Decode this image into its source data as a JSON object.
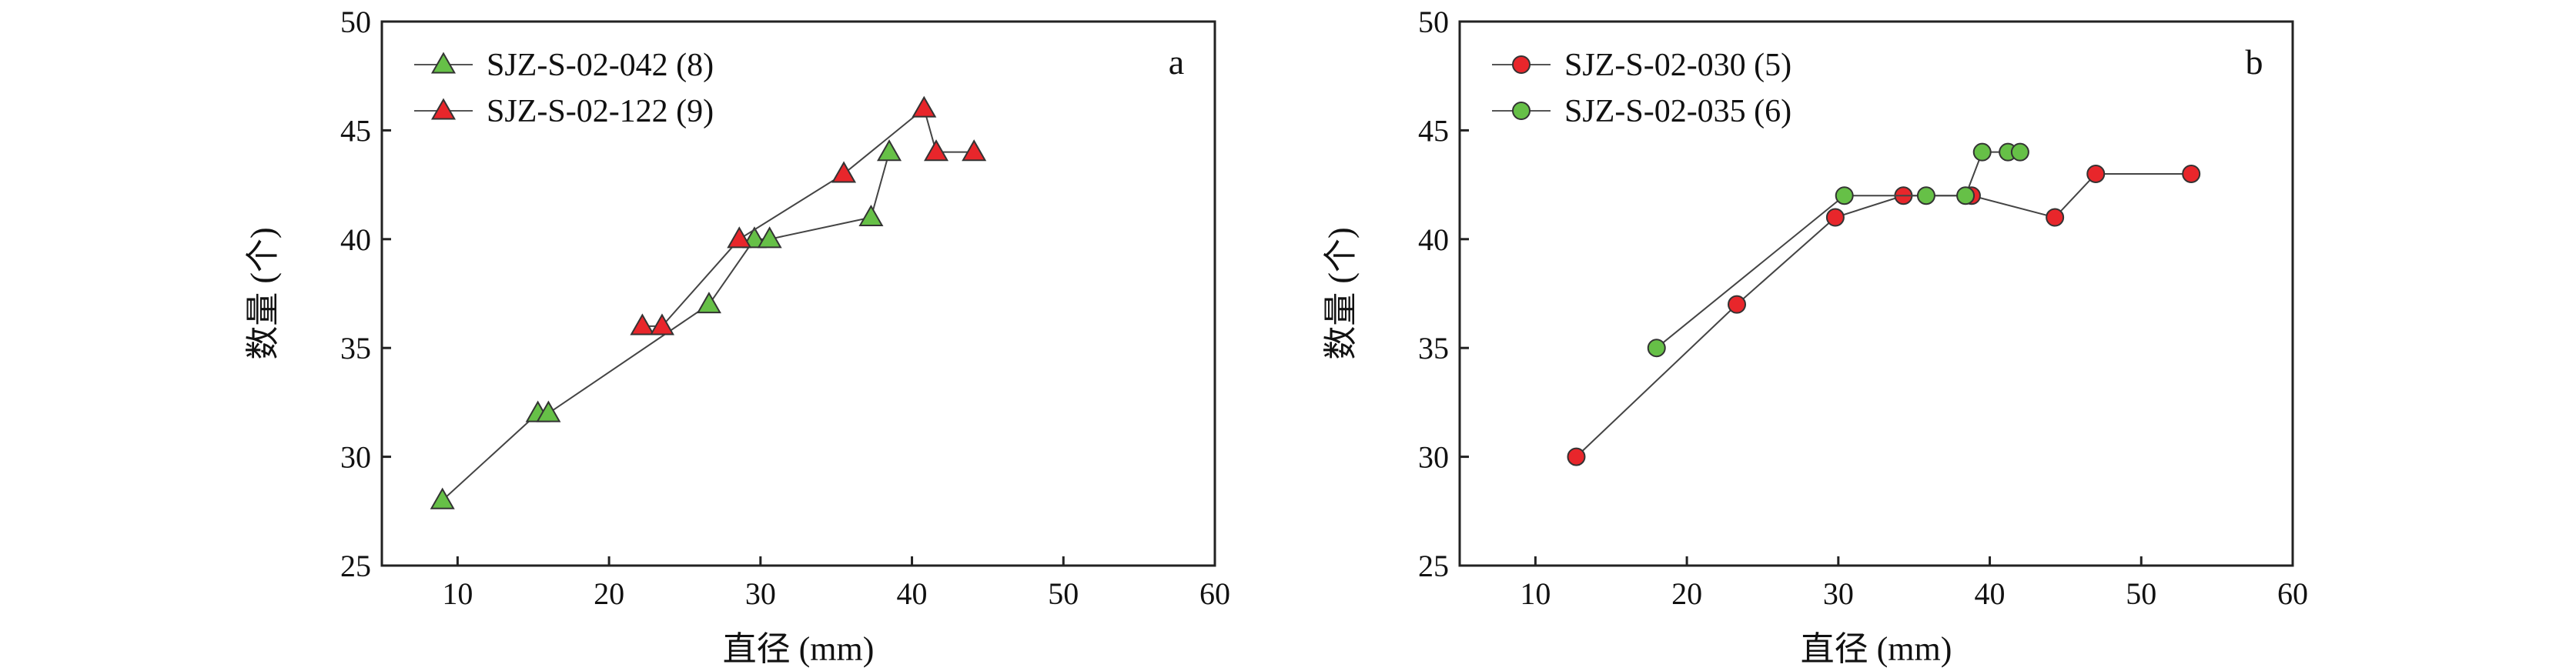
{
  "chart_data": [
    {
      "panel": "a",
      "type": "line",
      "xlabel": "直径 (mm)",
      "ylabel": "数量 (个)",
      "xlim": [
        5,
        60
      ],
      "ylim": [
        25,
        50
      ],
      "xticks": [
        10,
        20,
        30,
        40,
        50,
        60
      ],
      "yticks": [
        25,
        30,
        35,
        40,
        45,
        50
      ],
      "legend_position": "top-left",
      "series": [
        {
          "name": "SJZ-S-02-042 (8)",
          "marker": "triangle",
          "color": "#66c047",
          "points": [
            [
              9,
              28
            ],
            [
              15.3,
              32
            ],
            [
              16,
              32
            ],
            [
              26.6,
              37
            ],
            [
              29.6,
              40
            ],
            [
              30.6,
              40
            ],
            [
              37.3,
              41
            ],
            [
              38.5,
              44
            ]
          ]
        },
        {
          "name": "SJZ-S-02-122 (9)",
          "marker": "triangle",
          "color": "#e8262b",
          "points": [
            [
              22.2,
              36
            ],
            [
              23.5,
              36
            ],
            [
              28.6,
              40
            ],
            [
              35.5,
              43
            ],
            [
              40.8,
              46
            ],
            [
              41.6,
              44
            ],
            [
              44.1,
              44
            ]
          ]
        }
      ]
    },
    {
      "panel": "b",
      "type": "line",
      "xlabel": "直径 (mm)",
      "ylabel": "数量 (个)",
      "xlim": [
        5,
        60
      ],
      "ylim": [
        25,
        50
      ],
      "xticks": [
        10,
        20,
        30,
        40,
        50,
        60
      ],
      "yticks": [
        25,
        30,
        35,
        40,
        45,
        50
      ],
      "legend_position": "top-left",
      "series": [
        {
          "name": "SJZ-S-02-030 (5)",
          "marker": "circle",
          "color": "#e8262b",
          "points": [
            [
              12.7,
              30
            ],
            [
              23.3,
              37
            ],
            [
              29.8,
              41
            ],
            [
              34.3,
              42
            ],
            [
              38.8,
              42
            ],
            [
              44.3,
              41
            ],
            [
              47,
              43
            ],
            [
              53.3,
              43
            ]
          ]
        },
        {
          "name": "SJZ-S-02-035 (6)",
          "marker": "circle",
          "color": "#66c047",
          "points": [
            [
              18,
              35
            ],
            [
              30.4,
              42
            ],
            [
              35.8,
              42
            ],
            [
              38.4,
              42
            ],
            [
              39.5,
              44
            ],
            [
              41.2,
              44
            ],
            [
              42,
              44
            ]
          ]
        }
      ]
    }
  ]
}
